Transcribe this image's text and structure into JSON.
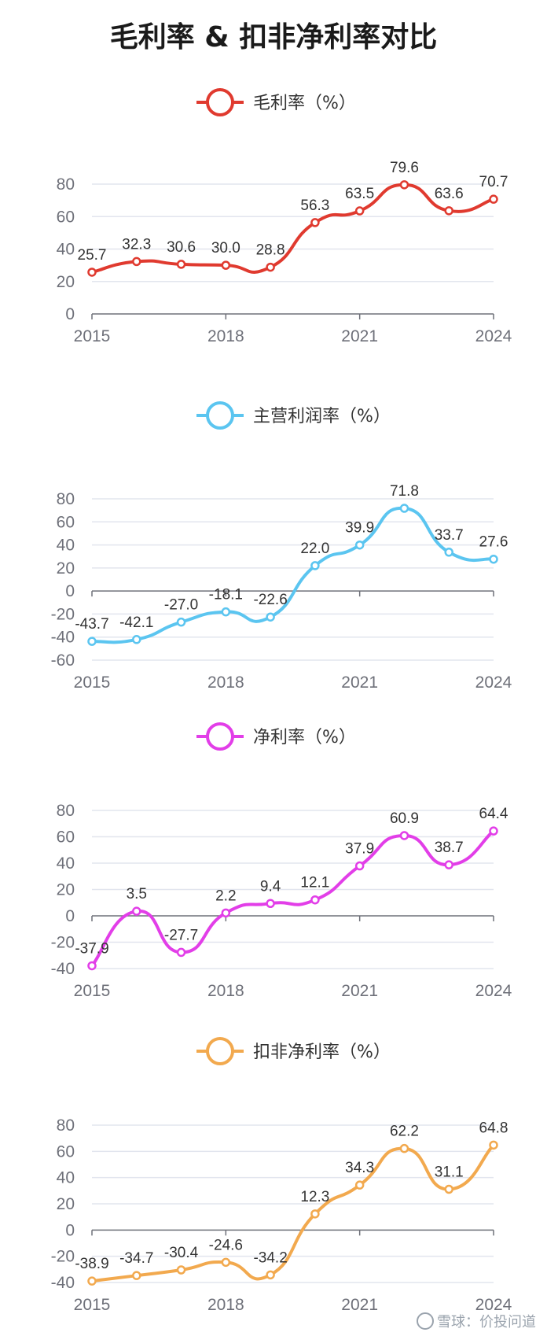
{
  "title": "毛利率 & 扣非净利率对比",
  "watermark": "雪球：价投问道",
  "chart_data": [
    {
      "type": "line",
      "x": [
        "2015",
        "2016",
        "2017",
        "2018",
        "2019",
        "2020",
        "2021",
        "2022",
        "2023",
        "2024"
      ],
      "x_tick_labels": [
        "2015",
        "2018",
        "2021",
        "2024"
      ],
      "series": [
        {
          "name": "毛利率（%）",
          "color": "#e03a2f",
          "values": [
            25.7,
            32.3,
            30.6,
            30.0,
            28.8,
            56.3,
            63.5,
            79.6,
            63.6,
            70.7
          ]
        }
      ],
      "ylim": [
        0,
        80
      ],
      "y_ticks": [
        "0",
        "20",
        "40",
        "60",
        "80"
      ],
      "legend_position": "top-center",
      "grid": true
    },
    {
      "type": "line",
      "x": [
        "2015",
        "2016",
        "2017",
        "2018",
        "2019",
        "2020",
        "2021",
        "2022",
        "2023",
        "2024"
      ],
      "x_tick_labels": [
        "2015",
        "2018",
        "2021",
        "2024"
      ],
      "series": [
        {
          "name": "主营利润率（%）",
          "color": "#5bc5f0",
          "values": [
            -43.7,
            -42.1,
            -27.0,
            -18.1,
            -22.6,
            22.0,
            39.9,
            71.8,
            33.7,
            27.6
          ]
        }
      ],
      "ylim": [
        -60,
        80
      ],
      "y_ticks": [
        "-60",
        "-40",
        "-20",
        "0",
        "20",
        "40",
        "60",
        "80"
      ],
      "legend_position": "top-center",
      "grid": true
    },
    {
      "type": "line",
      "x": [
        "2015",
        "2016",
        "2017",
        "2018",
        "2019",
        "2020",
        "2021",
        "2022",
        "2023",
        "2024"
      ],
      "x_tick_labels": [
        "2015",
        "2018",
        "2021",
        "2024"
      ],
      "series": [
        {
          "name": "净利率（%）",
          "color": "#e23ee8",
          "values": [
            -37.9,
            3.5,
            -27.7,
            2.2,
            9.4,
            12.1,
            37.9,
            60.9,
            38.7,
            64.4
          ]
        }
      ],
      "ylim": [
        -40,
        80
      ],
      "y_ticks": [
        "-40",
        "-20",
        "0",
        "20",
        "40",
        "60",
        "80"
      ],
      "legend_position": "top-center",
      "grid": true
    },
    {
      "type": "line",
      "x": [
        "2015",
        "2016",
        "2017",
        "2018",
        "2019",
        "2020",
        "2021",
        "2022",
        "2023",
        "2024"
      ],
      "x_tick_labels": [
        "2015",
        "2018",
        "2021",
        "2024"
      ],
      "series": [
        {
          "name": "扣非净利率（%）",
          "color": "#f2a94e",
          "values": [
            -38.9,
            -34.7,
            -30.4,
            -24.6,
            -34.2,
            12.3,
            34.3,
            62.2,
            31.1,
            64.8
          ]
        }
      ],
      "ylim": [
        -40,
        80
      ],
      "y_ticks": [
        "-40",
        "-20",
        "0",
        "20",
        "40",
        "60",
        "80"
      ],
      "legend_position": "top-center",
      "grid": true
    }
  ]
}
